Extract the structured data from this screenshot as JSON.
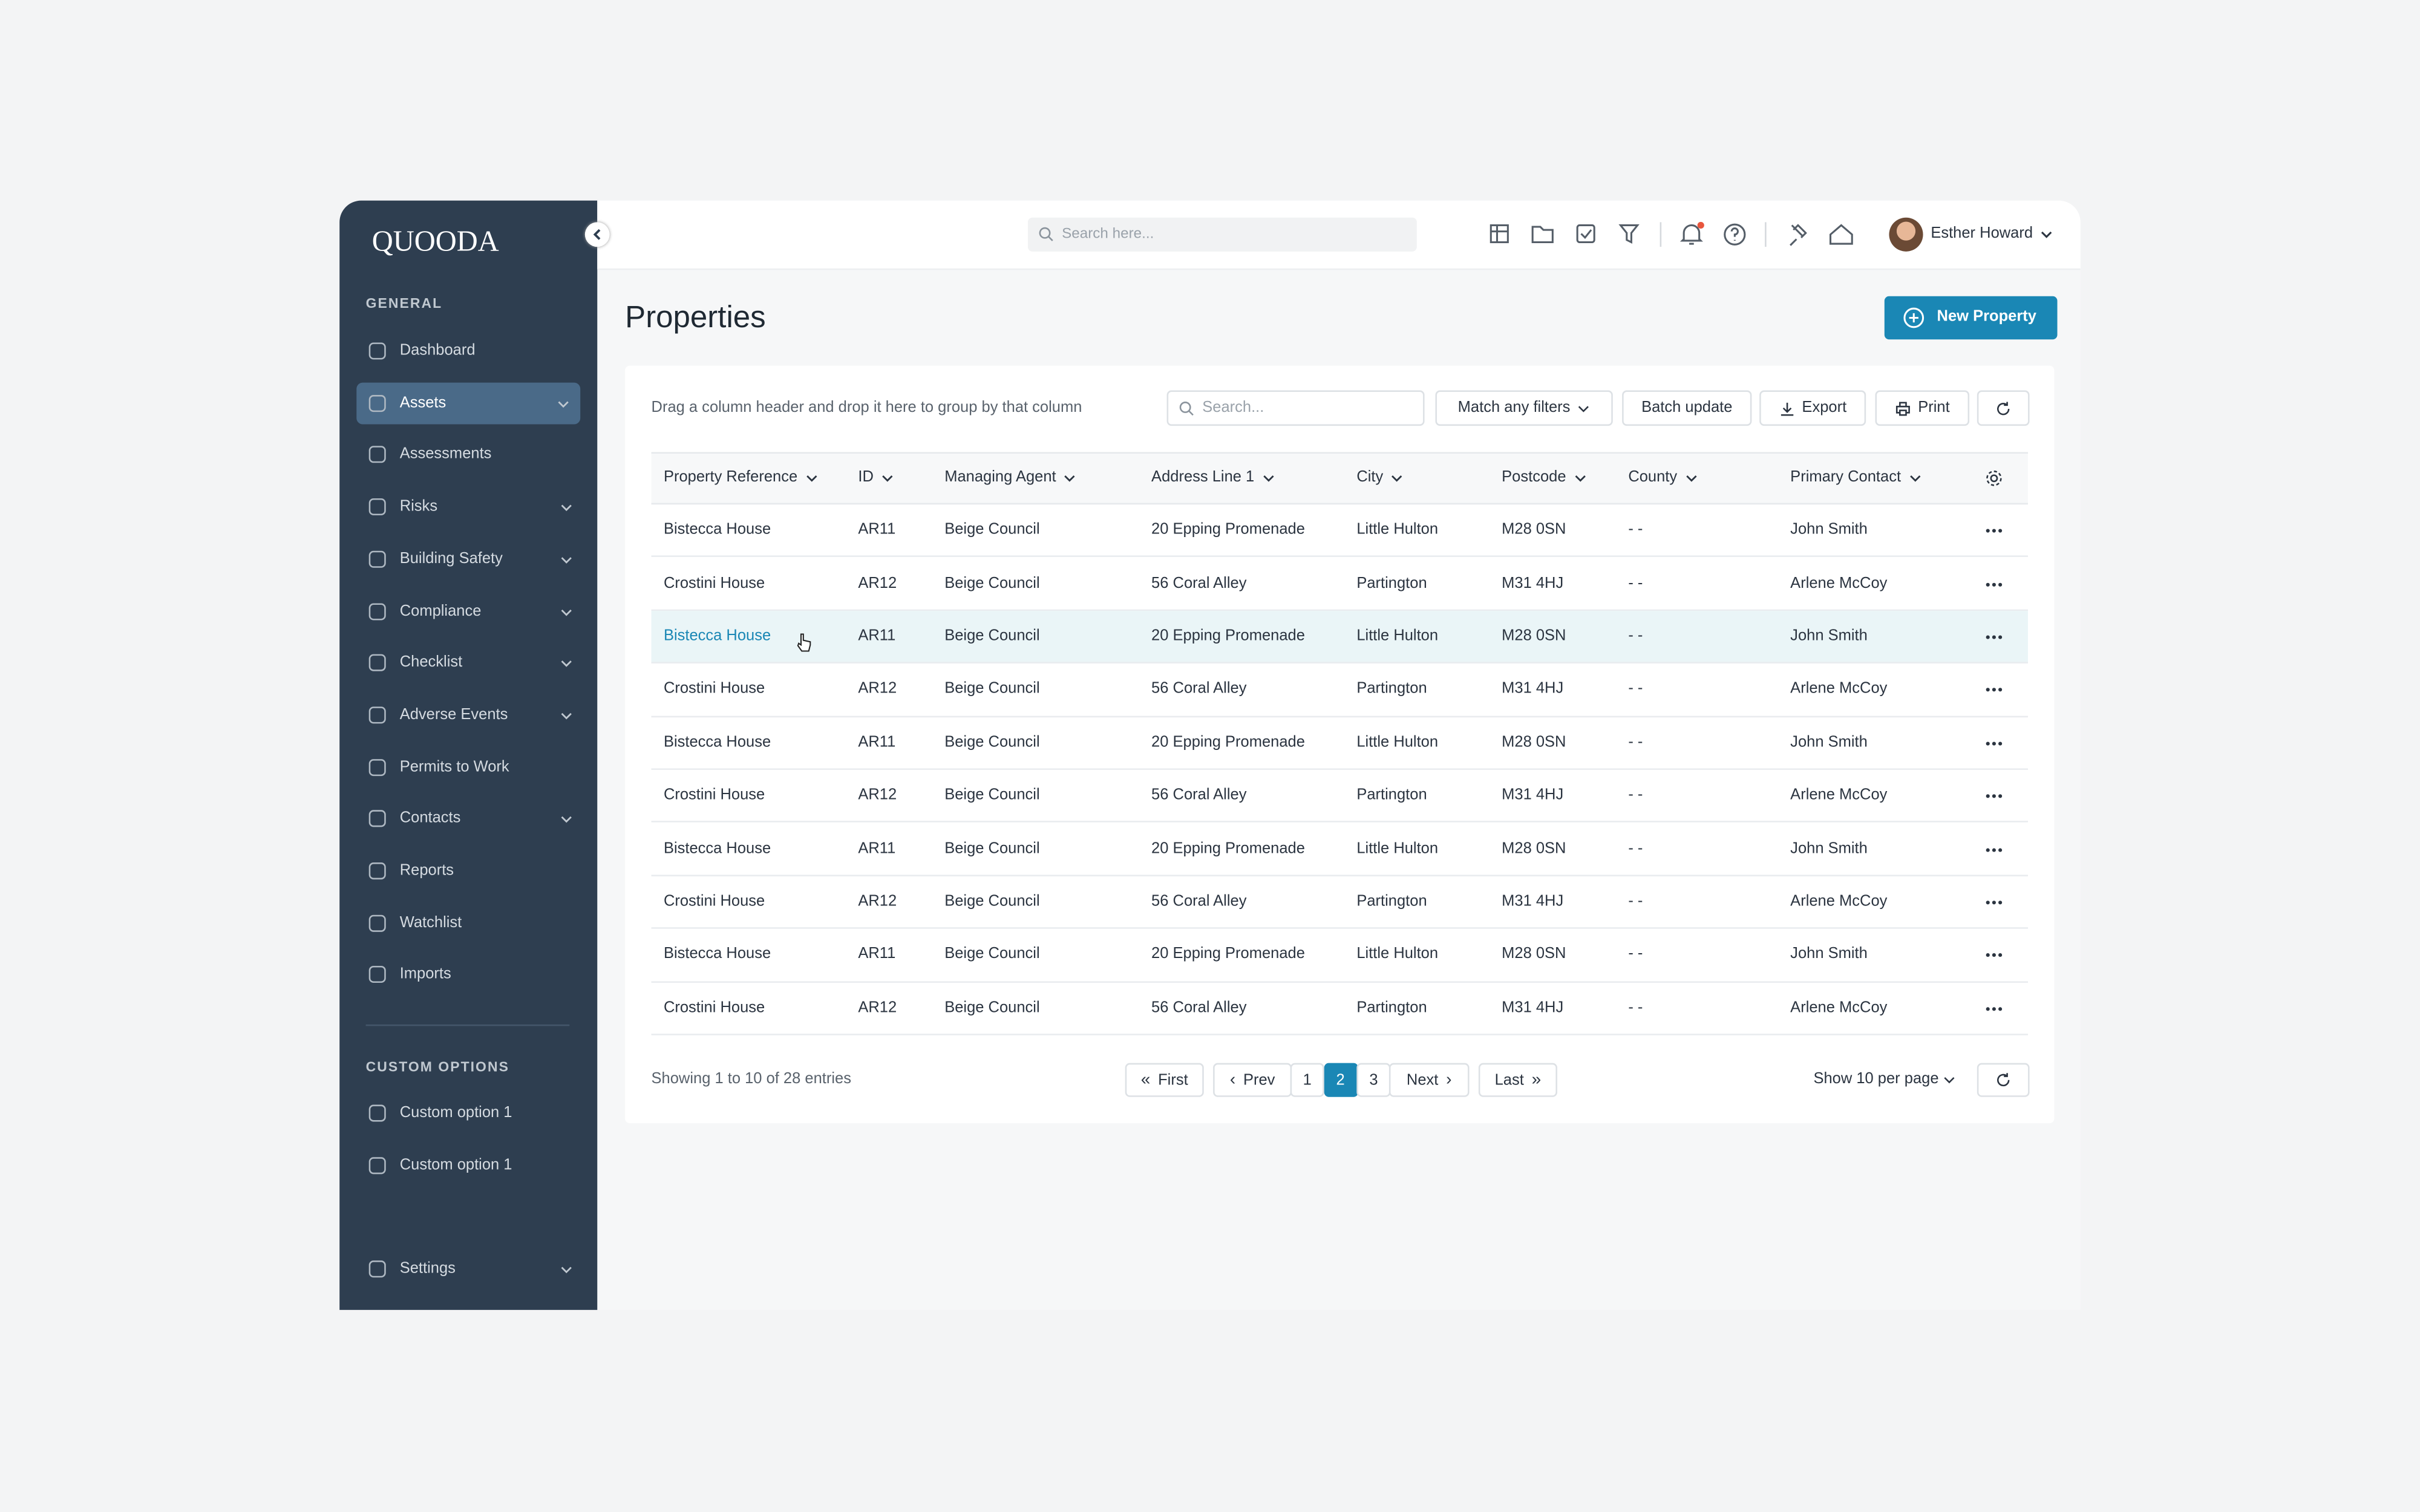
{
  "sidebar": {
    "logo": "QUOODA",
    "general_heading": "GENERAL",
    "nav": [
      "Dashboard",
      "Assets",
      "Assessments",
      "Risks",
      "Building Safety",
      "Compliance",
      "Checklist",
      "Adverse Events",
      "Permits to Work",
      "Contacts",
      "Reports",
      "Watchlist",
      "Imports"
    ],
    "custom_heading": "CUSTOM OPTIONS",
    "custom": [
      "Custom option 1",
      "Custom option 1"
    ],
    "settings": "Settings"
  },
  "topbar": {
    "search_placeholder": "Search here...",
    "user": "Esther Howard"
  },
  "page": {
    "title": "Properties",
    "new_button": "New Property"
  },
  "toolbar": {
    "group_hint": "Drag a column header and drop it here to group by that column",
    "search_placeholder": "Search...",
    "filter": "Match any filters",
    "batch": "Batch update",
    "export": "Export",
    "print": "Print"
  },
  "table": {
    "columns": [
      "Property Reference",
      "ID",
      "Managing Agent",
      "Address Line 1",
      "City",
      "Postcode",
      "County",
      "Primary Contact"
    ],
    "rows": [
      [
        "Bistecca House",
        "AR11",
        "Beige Council",
        "20 Epping Promenade",
        "Little Hulton",
        "M28 0SN",
        "- -",
        "John Smith"
      ],
      [
        "Crostini House",
        "AR12",
        "Beige Council",
        "56 Coral Alley",
        "Partington",
        "M31 4HJ",
        "- -",
        "Arlene McCoy"
      ],
      [
        "Bistecca House",
        "AR11",
        "Beige Council",
        "20 Epping Promenade",
        "Little Hulton",
        "M28 0SN",
        "- -",
        "John Smith"
      ],
      [
        "Crostini House",
        "AR12",
        "Beige Council",
        "56 Coral Alley",
        "Partington",
        "M31 4HJ",
        "- -",
        "Arlene McCoy"
      ],
      [
        "Bistecca House",
        "AR11",
        "Beige Council",
        "20 Epping Promenade",
        "Little Hulton",
        "M28 0SN",
        "- -",
        "John Smith"
      ],
      [
        "Crostini House",
        "AR12",
        "Beige Council",
        "56 Coral Alley",
        "Partington",
        "M31 4HJ",
        "- -",
        "Arlene McCoy"
      ],
      [
        "Bistecca House",
        "AR11",
        "Beige Council",
        "20 Epping Promenade",
        "Little Hulton",
        "M28 0SN",
        "- -",
        "John Smith"
      ],
      [
        "Crostini House",
        "AR12",
        "Beige Council",
        "56 Coral Alley",
        "Partington",
        "M31 4HJ",
        "- -",
        "Arlene McCoy"
      ],
      [
        "Bistecca House",
        "AR11",
        "Beige Council",
        "20 Epping Promenade",
        "Little Hulton",
        "M28 0SN",
        "- -",
        "John Smith"
      ],
      [
        "Crostini House",
        "AR12",
        "Beige Council",
        "56 Coral Alley",
        "Partington",
        "M31 4HJ",
        "- -",
        "Arlene McCoy"
      ]
    ]
  },
  "pagination": {
    "summary": "Showing 1 to 10 of 28 entries",
    "first": "First",
    "prev": "Prev",
    "pages": [
      "1",
      "2",
      "3"
    ],
    "next": "Next",
    "last": "Last",
    "per_page": "Show 10 per page"
  }
}
